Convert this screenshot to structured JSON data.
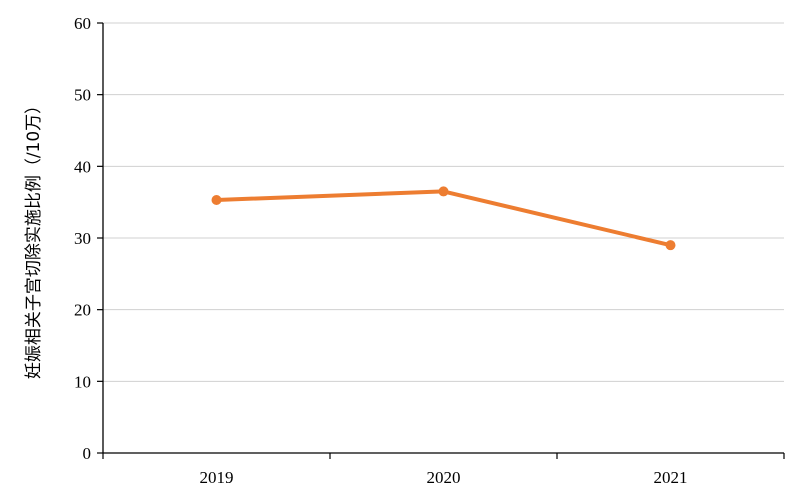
{
  "chart_data": {
    "type": "line",
    "title": "",
    "xlabel": "",
    "ylabel": "妊娠相关子宫切除实施比例（/10万）",
    "categories": [
      "2019",
      "2020",
      "2021"
    ],
    "series": [
      {
        "values": [
          35.3,
          36.5,
          29.0
        ]
      }
    ],
    "ylim": [
      0,
      60
    ],
    "yticks": [
      "0",
      "10",
      "20",
      "30",
      "40",
      "50",
      "60"
    ],
    "grid": true,
    "legend": "none",
    "colors": {
      "line": "#ED7D31",
      "grid": "#D0D0D0",
      "axis": "#000000"
    }
  }
}
